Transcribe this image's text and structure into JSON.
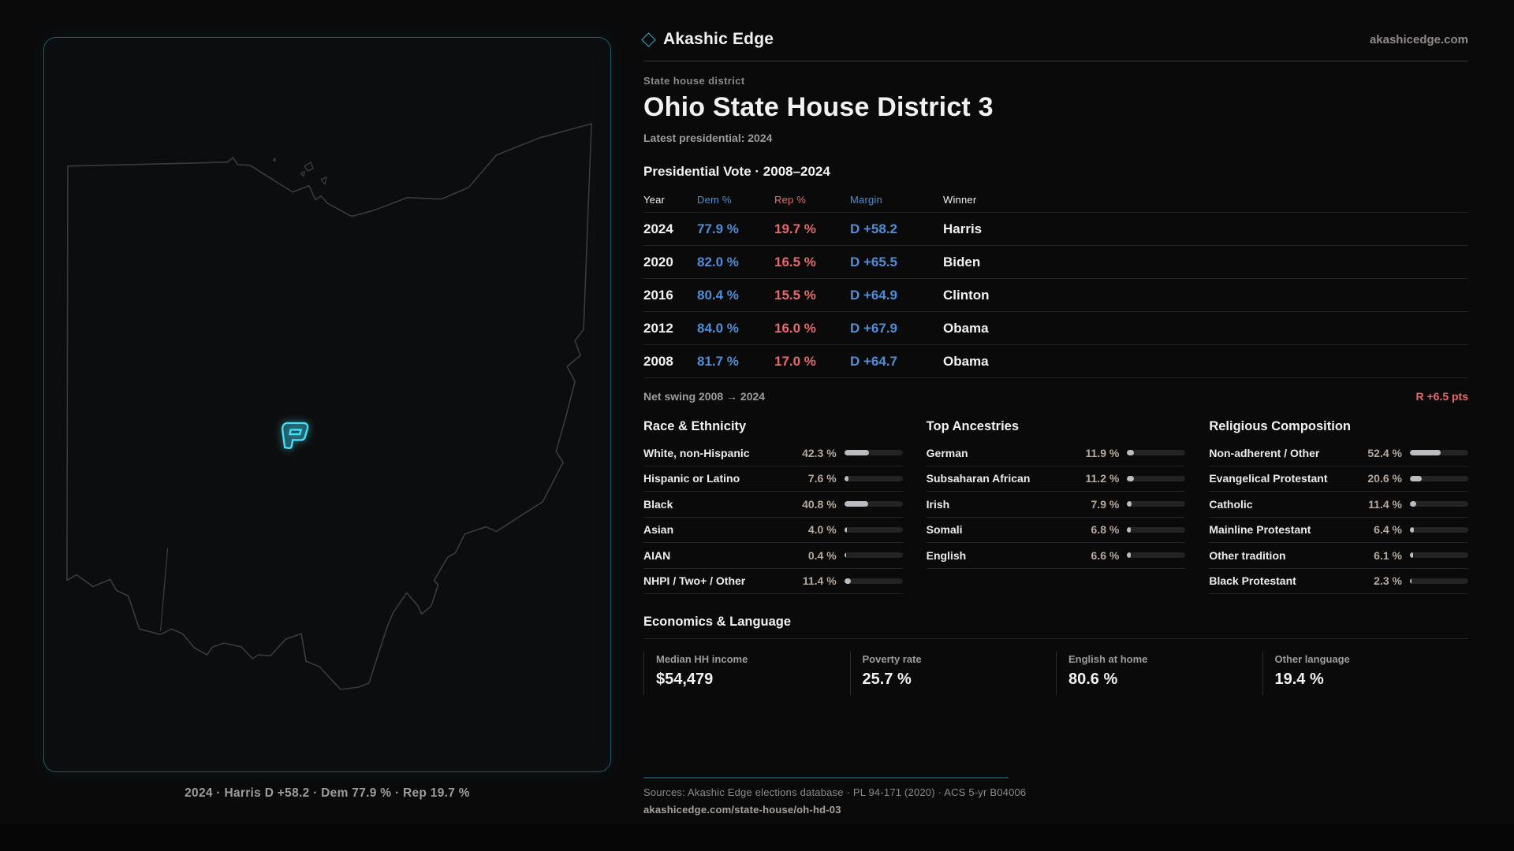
{
  "brand": {
    "name": "Akashic Edge",
    "site": "akashicedge.com"
  },
  "district": {
    "kicker": "State house district",
    "title": "Ohio State House District 3",
    "latest_label": "Latest presidential: 2024"
  },
  "map": {
    "state": "Ohio",
    "highlight": "District 3 (Columbus area)",
    "caption": "2024 · Harris D +58.2 · Dem 77.9 % · Rep 19.7 %"
  },
  "vote_table": {
    "title": "Presidential Vote · 2008–2024",
    "columns": [
      "Year",
      "Dem %",
      "Rep %",
      "Margin",
      "Winner"
    ],
    "rows": [
      {
        "year": "2024",
        "dem": "77.9 %",
        "rep": "19.7 %",
        "margin": "D +58.2",
        "winner": "Harris"
      },
      {
        "year": "2020",
        "dem": "82.0 %",
        "rep": "16.5 %",
        "margin": "D +65.5",
        "winner": "Biden"
      },
      {
        "year": "2016",
        "dem": "80.4 %",
        "rep": "15.5 %",
        "margin": "D +64.9",
        "winner": "Clinton"
      },
      {
        "year": "2012",
        "dem": "84.0 %",
        "rep": "16.0 %",
        "margin": "D +67.9",
        "winner": "Obama"
      },
      {
        "year": "2008",
        "dem": "81.7 %",
        "rep": "17.0 %",
        "margin": "D +64.7",
        "winner": "Obama"
      }
    ]
  },
  "net_swing": {
    "label": "Net swing 2008 → 2024",
    "value": "R +6.5 pts"
  },
  "demographics": [
    {
      "title": "Race & Ethnicity",
      "rows": [
        {
          "label": "White, non-Hispanic",
          "value": "42.3 %",
          "pct": 42.3
        },
        {
          "label": "Hispanic or Latino",
          "value": "7.6 %",
          "pct": 7.6
        },
        {
          "label": "Black",
          "value": "40.8 %",
          "pct": 40.8
        },
        {
          "label": "Asian",
          "value": "4.0 %",
          "pct": 4.0
        },
        {
          "label": "AIAN",
          "value": "0.4 %",
          "pct": 0.4
        },
        {
          "label": "NHPI / Two+ / Other",
          "value": "11.4 %",
          "pct": 11.4
        }
      ]
    },
    {
      "title": "Top Ancestries",
      "rows": [
        {
          "label": "German",
          "value": "11.9 %",
          "pct": 11.9
        },
        {
          "label": "Subsaharan African",
          "value": "11.2 %",
          "pct": 11.2
        },
        {
          "label": "Irish",
          "value": "7.9 %",
          "pct": 7.9
        },
        {
          "label": "Somali",
          "value": "6.8 %",
          "pct": 6.8
        },
        {
          "label": "English",
          "value": "6.6 %",
          "pct": 6.6
        }
      ]
    },
    {
      "title": "Religious Composition",
      "rows": [
        {
          "label": "Non-adherent / Other",
          "value": "52.4 %",
          "pct": 52.4
        },
        {
          "label": "Evangelical Protestant",
          "value": "20.6 %",
          "pct": 20.6
        },
        {
          "label": "Catholic",
          "value": "11.4 %",
          "pct": 11.4
        },
        {
          "label": "Mainline Protestant",
          "value": "6.4 %",
          "pct": 6.4
        },
        {
          "label": "Other tradition",
          "value": "6.1 %",
          "pct": 6.1
        },
        {
          "label": "Black Protestant",
          "value": "2.3 %",
          "pct": 2.3
        }
      ]
    }
  ],
  "economics": {
    "title": "Economics & Language",
    "stats": [
      {
        "label": "Median HH income",
        "value": "$54,479"
      },
      {
        "label": "Poverty rate",
        "value": "25.7 %"
      },
      {
        "label": "English at home",
        "value": "80.6 %"
      },
      {
        "label": "Other language",
        "value": "19.4 %"
      }
    ]
  },
  "footer": {
    "sources": "Sources: Akashic Edge elections database · PL 94-171 (2020) · ACS 5-yr B04006",
    "permalink": "akashicedge.com/state-house/oh-hd-03"
  },
  "colors": {
    "dem_blue": "#4e8ed8",
    "rep_red": "#e8696c",
    "accent_cyan": "#39c9e3",
    "value_tan": "#b7a99b",
    "panel_border_teal": "#1e5a66"
  }
}
